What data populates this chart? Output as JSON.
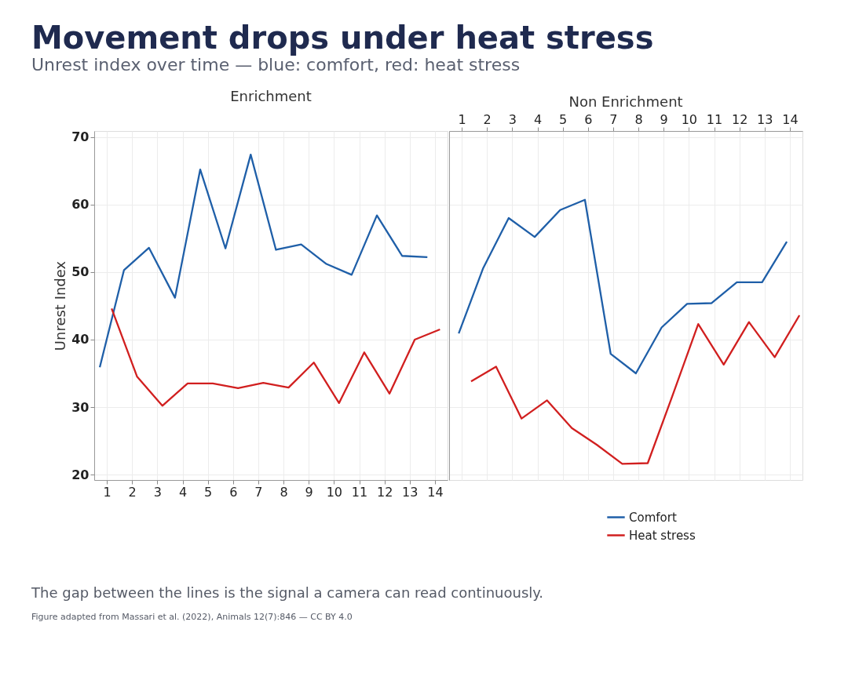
{
  "chart_data": [
    {
      "type": "line",
      "title": "Enrichment",
      "ylabel": "Unrest Index",
      "xlim": [
        0.5,
        14.5
      ],
      "xticks": [
        1,
        2,
        3,
        4,
        5,
        6,
        7,
        8,
        9,
        10,
        11,
        12,
        13,
        14
      ],
      "ylim": [
        19.2,
        70.9
      ],
      "yticks": [
        20,
        30,
        40,
        50,
        60,
        70
      ],
      "grid": true,
      "marker": "none",
      "line_style": "solid",
      "legend": "bottom right",
      "annotations": [
        "Movement drops under heat stress",
        "Unrest index over time — blue: comfort, red: heat stress"
      ],
      "series": [
        {
          "name": "Comfort",
          "color": "#1f5fa8",
          "x": [
            0.72,
            1.68,
            2.67,
            3.7,
            4.7,
            5.7,
            6.7,
            7.7,
            8.7,
            9.7,
            10.7,
            11.7,
            12.7,
            13.7
          ],
          "values": [
            35.9,
            50.3,
            53.6,
            46.2,
            65.2,
            53.5,
            67.4,
            53.3,
            54.1,
            51.2,
            49.6,
            58.4,
            52.4,
            52.2
          ]
        },
        {
          "name": "Heat stress",
          "color": "#d11f1f",
          "x": [
            1.19,
            2.2,
            3.2,
            4.2,
            5.2,
            6.2,
            7.2,
            8.2,
            9.2,
            10.2,
            11.2,
            12.2,
            13.2,
            14.2
          ],
          "values": [
            44.6,
            34.5,
            30.2,
            33.5,
            33.5,
            32.8,
            33.6,
            32.9,
            36.6,
            30.6,
            38.1,
            32.0,
            40.0,
            41.5
          ]
        }
      ]
    },
    {
      "type": "line",
      "title": "Non Enrichment",
      "xlim": [
        0.5,
        14.5
      ],
      "xticks": [
        1,
        2,
        3,
        4,
        5,
        6,
        7,
        8,
        9,
        10,
        11,
        12,
        13,
        14
      ],
      "ylim": [
        19.2,
        70.9
      ],
      "yticks": [
        20,
        30,
        40,
        50,
        60,
        70
      ],
      "tick_labels": "x",
      "grid": true,
      "marker": "none",
      "line_style": "solid",
      "annotations": [
        "The gap between the lines is the signal a camera can read continuously.",
        "Figure adapted from Massari et al. (2022), Animals 12(7):846 — CC BY 4.0"
      ],
      "series": [
        {
          "color": "#1f5fa8",
          "x": [
            0.88,
            1.84,
            2.86,
            3.89,
            4.9,
            5.88,
            6.9,
            7.9,
            8.92,
            9.93,
            10.9,
            11.9,
            12.9,
            13.88
          ],
          "values": [
            40.9,
            50.5,
            58.0,
            55.2,
            59.2,
            60.7,
            37.9,
            35.0,
            41.8,
            45.3,
            45.4,
            48.5,
            48.5,
            54.5
          ]
        },
        {
          "color": "#d11f1f",
          "x": [
            1.37,
            2.36,
            3.37,
            4.38,
            5.36,
            6.36,
            7.36,
            8.37,
            9.37,
            10.37,
            11.38,
            12.38,
            13.4,
            14.38
          ],
          "values": [
            33.8,
            36.0,
            28.3,
            31.0,
            26.9,
            24.4,
            21.6,
            21.7,
            31.9,
            42.3,
            36.3,
            42.6,
            37.4,
            43.6
          ]
        }
      ]
    }
  ]
}
